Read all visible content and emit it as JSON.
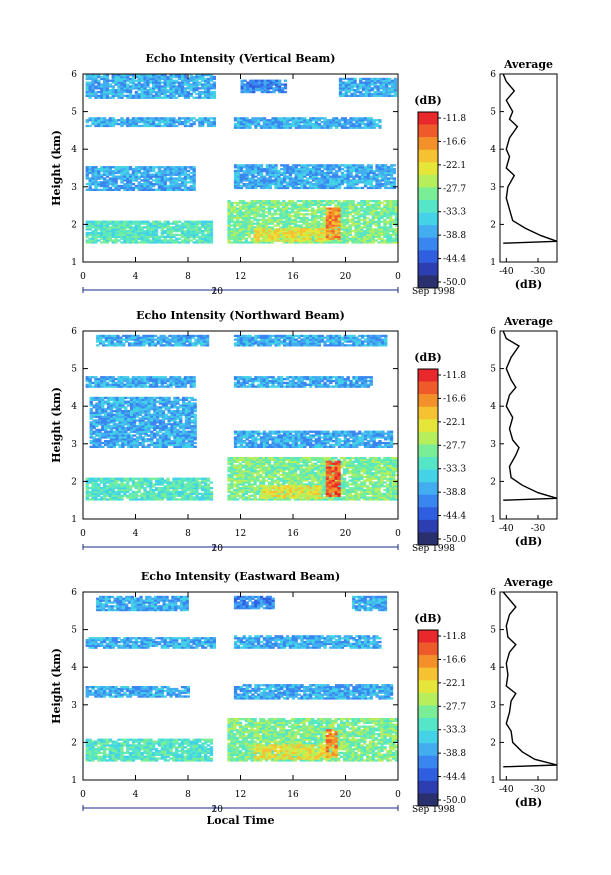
{
  "colors": {
    "scale": [
      "#2a2f6e",
      "#2d3fb0",
      "#2f5fe0",
      "#3a86f0",
      "#42aef0",
      "#43d2e6",
      "#55e6c8",
      "#79ee97",
      "#b6ee5c",
      "#e6e63a",
      "#f5c232",
      "#f3902a",
      "#ef5a2a",
      "#e8282a"
    ],
    "axis": "#000000",
    "time_axis": "#1a2a8a"
  },
  "chart_data": [
    {
      "type": "heatmap",
      "title": "Echo Intensity (Vertical Beam)",
      "ylabel": "Height (km)",
      "ylim": [
        1,
        6
      ],
      "xlim": [
        0,
        24
      ],
      "x_ticks": [
        "0",
        "4",
        "8",
        "12",
        "16",
        "20",
        "0"
      ],
      "y_ticks": [
        "1",
        "2",
        "3",
        "4",
        "5",
        "6"
      ],
      "date_tick": "20",
      "date_label": "Sep 1998",
      "colorbar": {
        "unit": "(dB)",
        "levels": [
          "-11.8",
          "-16.6",
          "-22.1",
          "-27.7",
          "-33.3",
          "-38.8",
          "-44.4",
          "-50.0"
        ]
      },
      "bands": [
        {
          "t0": 0.2,
          "t1": 10.0,
          "h0": 5.35,
          "h1": 5.95,
          "level": 4
        },
        {
          "t0": 12.0,
          "t1": 15.5,
          "h0": 5.5,
          "h1": 5.8,
          "level": 3
        },
        {
          "t0": 19.5,
          "t1": 23.8,
          "h0": 5.4,
          "h1": 5.85,
          "level": 4
        },
        {
          "t0": 0.2,
          "t1": 10.0,
          "h0": 4.6,
          "h1": 4.8,
          "level": 4
        },
        {
          "t0": 11.5,
          "t1": 22.5,
          "h0": 4.55,
          "h1": 4.8,
          "level": 4
        },
        {
          "t0": 0.2,
          "t1": 8.5,
          "h0": 2.9,
          "h1": 3.5,
          "level": 4
        },
        {
          "t0": 11.5,
          "t1": 23.8,
          "h0": 2.95,
          "h1": 3.55,
          "level": 4
        },
        {
          "t0": 0.2,
          "t1": 9.8,
          "h0": 1.5,
          "h1": 2.1,
          "level": 6
        },
        {
          "t0": 11.0,
          "t1": 23.8,
          "h0": 1.5,
          "h1": 2.6,
          "level": 7
        },
        {
          "t0": 13.0,
          "t1": 18.5,
          "h0": 1.55,
          "h1": 1.9,
          "level": 9
        },
        {
          "t0": 18.5,
          "t1": 19.5,
          "h0": 1.6,
          "h1": 2.4,
          "level": 11
        }
      ],
      "average": {
        "xlabel": "(dB)",
        "title": "Average",
        "x_ticks": [
          "-40",
          "-30"
        ],
        "xlim": [
          -42,
          -24
        ],
        "profile": [
          [
            1.5,
            -41
          ],
          [
            1.55,
            -24
          ],
          [
            1.7,
            -29
          ],
          [
            1.9,
            -34
          ],
          [
            2.1,
            -38
          ],
          [
            2.4,
            -39
          ],
          [
            2.7,
            -40
          ],
          [
            3.0,
            -39.5
          ],
          [
            3.3,
            -37.5
          ],
          [
            3.5,
            -40
          ],
          [
            3.8,
            -39
          ],
          [
            4.0,
            -40
          ],
          [
            4.3,
            -39
          ],
          [
            4.6,
            -36.5
          ],
          [
            4.8,
            -39
          ],
          [
            5.0,
            -38
          ],
          [
            5.3,
            -40
          ],
          [
            5.55,
            -37.5
          ],
          [
            5.8,
            -40
          ],
          [
            6.0,
            -41
          ]
        ]
      }
    },
    {
      "type": "heatmap",
      "title": "Echo Intensity (Northward Beam)",
      "ylabel": "Height (km)",
      "ylim": [
        1,
        6
      ],
      "xlim": [
        0,
        24
      ],
      "x_ticks": [
        "0",
        "4",
        "8",
        "12",
        "16",
        "20",
        "0"
      ],
      "y_ticks": [
        "1",
        "2",
        "3",
        "4",
        "5",
        "6"
      ],
      "date_tick": "20",
      "date_label": "Sep 1998",
      "colorbar": {
        "unit": "(dB)",
        "levels": [
          "-11.8",
          "-16.6",
          "-22.1",
          "-27.7",
          "-33.3",
          "-38.8",
          "-44.4",
          "-50.0"
        ]
      },
      "bands": [
        {
          "t0": 1.0,
          "t1": 9.5,
          "h0": 5.6,
          "h1": 5.85,
          "level": 4
        },
        {
          "t0": 11.5,
          "t1": 23.0,
          "h0": 5.6,
          "h1": 5.85,
          "level": 4
        },
        {
          "t0": 0.2,
          "t1": 8.5,
          "h0": 4.5,
          "h1": 4.75,
          "level": 4
        },
        {
          "t0": 11.5,
          "t1": 22.0,
          "h0": 4.5,
          "h1": 4.75,
          "level": 4
        },
        {
          "t0": 0.5,
          "t1": 8.5,
          "h0": 2.9,
          "h1": 4.2,
          "level": 4
        },
        {
          "t0": 11.5,
          "t1": 23.5,
          "h0": 2.9,
          "h1": 3.3,
          "level": 4
        },
        {
          "t0": 0.2,
          "t1": 9.8,
          "h0": 1.5,
          "h1": 2.1,
          "level": 6
        },
        {
          "t0": 11.0,
          "t1": 23.8,
          "h0": 1.5,
          "h1": 2.6,
          "level": 7
        },
        {
          "t0": 13.5,
          "t1": 18.0,
          "h0": 1.55,
          "h1": 1.9,
          "level": 9
        },
        {
          "t0": 18.5,
          "t1": 19.5,
          "h0": 1.6,
          "h1": 2.5,
          "level": 12
        }
      ],
      "average": {
        "xlabel": "(dB)",
        "title": "Average",
        "x_ticks": [
          "-40",
          "-30"
        ],
        "xlim": [
          -42,
          -24
        ],
        "profile": [
          [
            1.5,
            -41
          ],
          [
            1.55,
            -24
          ],
          [
            1.7,
            -30
          ],
          [
            1.9,
            -35
          ],
          [
            2.1,
            -38.5
          ],
          [
            2.4,
            -39
          ],
          [
            2.7,
            -37
          ],
          [
            2.9,
            -36
          ],
          [
            3.1,
            -38
          ],
          [
            3.4,
            -39
          ],
          [
            3.7,
            -38
          ],
          [
            4.0,
            -40
          ],
          [
            4.3,
            -39
          ],
          [
            4.5,
            -37
          ],
          [
            4.7,
            -38.5
          ],
          [
            5.0,
            -40
          ],
          [
            5.3,
            -38.5
          ],
          [
            5.6,
            -36
          ],
          [
            5.8,
            -40
          ],
          [
            6.0,
            -41
          ]
        ]
      }
    },
    {
      "type": "heatmap",
      "title": "Echo Intensity (Eastward Beam)",
      "ylabel": "Height (km)",
      "xlabel": "Local Time",
      "ylim": [
        1,
        6
      ],
      "xlim": [
        0,
        24
      ],
      "x_ticks": [
        "0",
        "4",
        "8",
        "12",
        "16",
        "20",
        "0"
      ],
      "y_ticks": [
        "1",
        "2",
        "3",
        "4",
        "5",
        "6"
      ],
      "date_tick": "20",
      "date_label": "Sep 1998",
      "colorbar": {
        "unit": "(dB)",
        "levels": [
          "-11.8",
          "-16.6",
          "-22.1",
          "-27.7",
          "-33.3",
          "-38.8",
          "-44.4",
          "-50.0"
        ]
      },
      "bands": [
        {
          "t0": 1.0,
          "t1": 8.0,
          "h0": 5.5,
          "h1": 5.85,
          "level": 4
        },
        {
          "t0": 11.5,
          "t1": 14.5,
          "h0": 5.55,
          "h1": 5.85,
          "level": 3
        },
        {
          "t0": 20.5,
          "t1": 23.0,
          "h0": 5.5,
          "h1": 5.85,
          "level": 4
        },
        {
          "t0": 0.2,
          "t1": 10.0,
          "h0": 4.5,
          "h1": 4.75,
          "level": 4
        },
        {
          "t0": 11.5,
          "t1": 22.5,
          "h0": 4.5,
          "h1": 4.8,
          "level": 4
        },
        {
          "t0": 0.2,
          "t1": 8.0,
          "h0": 3.2,
          "h1": 3.45,
          "level": 4
        },
        {
          "t0": 11.5,
          "t1": 23.5,
          "h0": 3.15,
          "h1": 3.5,
          "level": 4
        },
        {
          "t0": 0.2,
          "t1": 9.8,
          "h0": 1.5,
          "h1": 2.1,
          "level": 6
        },
        {
          "t0": 11.0,
          "t1": 23.8,
          "h0": 1.5,
          "h1": 2.6,
          "level": 7
        },
        {
          "t0": 13.0,
          "t1": 18.5,
          "h0": 1.55,
          "h1": 1.95,
          "level": 9
        },
        {
          "t0": 18.5,
          "t1": 19.3,
          "h0": 1.6,
          "h1": 2.3,
          "level": 11
        }
      ],
      "average": {
        "xlabel": "(dB)",
        "title": "Average",
        "x_ticks": [
          "-40",
          "-30"
        ],
        "xlim": [
          -42,
          -24
        ],
        "profile": [
          [
            1.35,
            -41
          ],
          [
            1.4,
            -24
          ],
          [
            1.55,
            -31
          ],
          [
            1.75,
            -35
          ],
          [
            2.0,
            -38
          ],
          [
            2.3,
            -38.5
          ],
          [
            2.5,
            -40
          ],
          [
            2.8,
            -39
          ],
          [
            3.1,
            -38.5
          ],
          [
            3.3,
            -37
          ],
          [
            3.5,
            -40
          ],
          [
            3.8,
            -39.5
          ],
          [
            4.1,
            -40
          ],
          [
            4.4,
            -39
          ],
          [
            4.6,
            -37
          ],
          [
            4.8,
            -39.5
          ],
          [
            5.1,
            -40
          ],
          [
            5.4,
            -39
          ],
          [
            5.6,
            -37
          ],
          [
            5.8,
            -39
          ],
          [
            6.0,
            -41
          ]
        ]
      }
    }
  ]
}
